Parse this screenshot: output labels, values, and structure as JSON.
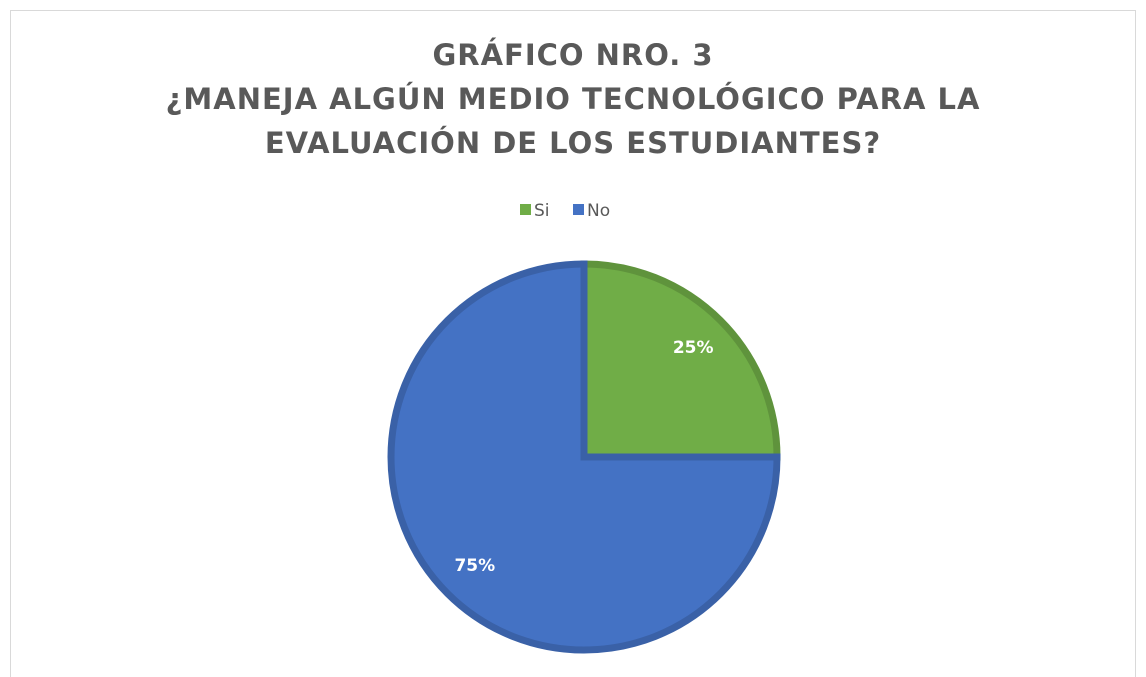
{
  "chart_data": {
    "type": "pie",
    "title": [
      "GRÁFICO NRO. 3",
      "¿MANEJA ALGÚN MEDIO TECNOLÓGICO PARA LA",
      "EVALUACIÓN DE LOS ESTUDIANTES?"
    ],
    "categories": [
      "Si",
      "No"
    ],
    "values": [
      25,
      75
    ],
    "value_labels": [
      "25%",
      "75%"
    ],
    "colors": [
      "#70ad47",
      "#4472c4"
    ],
    "legend": "top"
  }
}
